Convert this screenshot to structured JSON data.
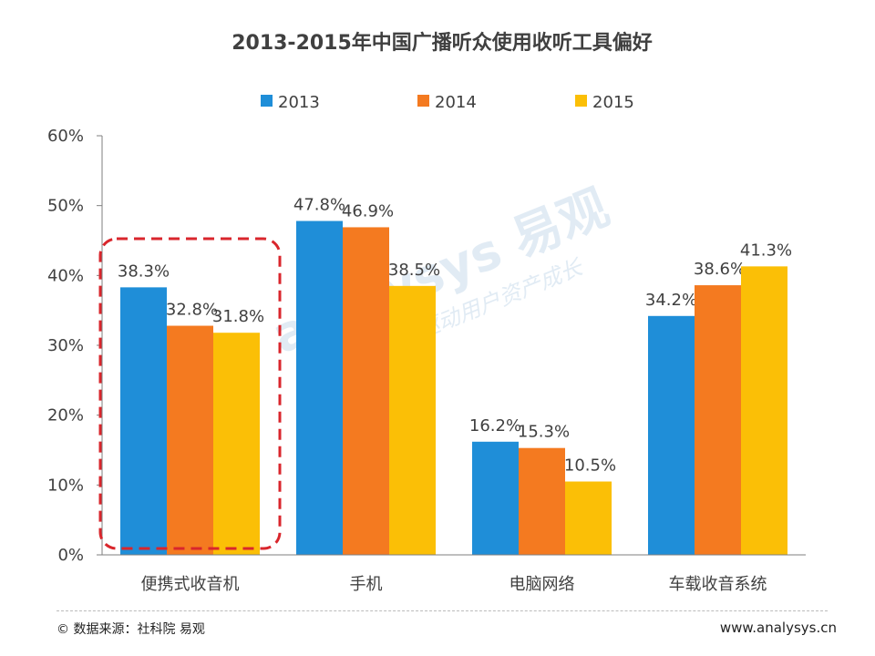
{
  "chart_data": {
    "type": "bar",
    "title": "2013-2015年中国广播听众使用收听工具偏好",
    "categories": [
      "便携式收音机",
      "手机",
      "电脑网络",
      "车载收音系统"
    ],
    "series": [
      {
        "name": "2013",
        "color": "#1f8ed8",
        "values": [
          38.3,
          47.8,
          16.2,
          34.2
        ],
        "labels": [
          "38.3%",
          "47.8%",
          "16.2%",
          "34.2%"
        ]
      },
      {
        "name": "2014",
        "color": "#f47a20",
        "values": [
          32.8,
          46.9,
          15.3,
          38.6
        ],
        "labels": [
          "32.8%",
          "46.9%",
          "15.3%",
          "38.6%"
        ]
      },
      {
        "name": "2015",
        "color": "#fbbf06",
        "values": [
          31.8,
          38.5,
          10.5,
          41.3
        ],
        "labels": [
          "31.8%",
          "38.5%",
          "10.5%",
          "41.3%"
        ]
      }
    ],
    "ylim": [
      0,
      60
    ],
    "yticks": [
      0,
      10,
      20,
      30,
      40,
      50,
      60
    ],
    "ytick_labels": [
      "0%",
      "10%",
      "20%",
      "30%",
      "40%",
      "50%",
      "60%"
    ],
    "xlabel": "",
    "ylabel": "",
    "legend_position": "top-center",
    "highlight_category": "便携式收音机",
    "highlight_color": "#d9262c"
  },
  "watermark": {
    "brand": "analysys 易观",
    "slogan": "分析驱动用户资产成长"
  },
  "footer": {
    "source": "© 数据来源：社科院 易观",
    "url": "www.analysys.cn"
  }
}
